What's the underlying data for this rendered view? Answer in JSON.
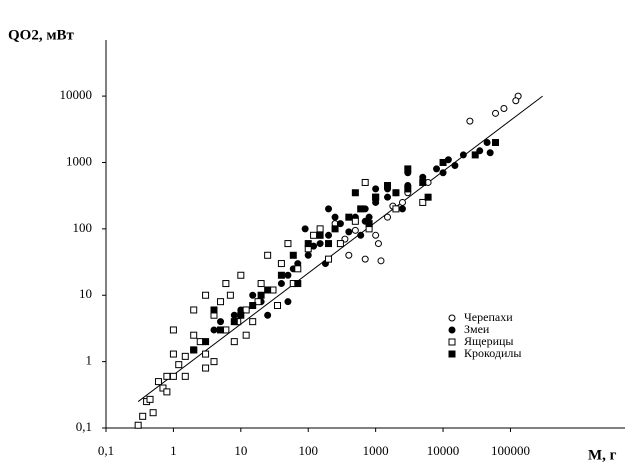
{
  "chart_data": {
    "type": "scatter",
    "y_label": "QO2, мВт",
    "x_label": "M, г",
    "xscale": "log",
    "yscale": "log",
    "xlim": [
      0.1,
      5000000
    ],
    "ylim": [
      0.1,
      70000
    ],
    "xticks": [
      {
        "value": 0.1,
        "label": "0,1"
      },
      1,
      10,
      100,
      1000,
      10000,
      100000
    ],
    "yticks": [
      {
        "value": 0.1,
        "label": "0,1"
      },
      1,
      10,
      100,
      1000,
      10000
    ],
    "legend": "right",
    "trend": {
      "x": [
        0.3,
        300000
      ],
      "values": [
        0.25,
        10000
      ],
      "color": "#000000"
    },
    "series": [
      {
        "name": "Черепахи",
        "marker": "circle-open",
        "color": "#000000",
        "x": [
          130000,
          120000,
          80000,
          60000,
          25000,
          1100,
          1200,
          700,
          500,
          350,
          250,
          1500,
          800,
          3000,
          6000,
          1800,
          2500,
          400,
          1000
        ],
        "values": [
          10000,
          8500,
          6500,
          5500,
          4200,
          60,
          33,
          35,
          95,
          70,
          120,
          150,
          110,
          350,
          500,
          220,
          250,
          40,
          80
        ]
      },
      {
        "name": "Змеи",
        "marker": "circle",
        "color": "#000000",
        "x": [
          45000,
          35000,
          20000,
          15000,
          10000,
          8000,
          5000,
          3000,
          2000,
          1500,
          1000,
          700,
          500,
          300,
          200,
          150,
          100,
          70,
          50,
          40,
          30,
          20,
          15,
          10,
          8,
          5,
          4,
          3,
          2,
          1500,
          2500,
          800,
          400,
          250,
          120,
          60,
          600,
          3000,
          12000,
          50000,
          1000,
          700,
          200,
          90,
          25,
          50,
          180
        ],
        "values": [
          2000,
          1500,
          1300,
          900,
          700,
          800,
          600,
          450,
          350,
          300,
          250,
          200,
          150,
          120,
          80,
          60,
          40,
          30,
          20,
          15,
          12,
          8,
          10,
          6,
          5,
          4,
          3,
          2,
          1.5,
          400,
          200,
          150,
          90,
          150,
          55,
          25,
          80,
          700,
          1100,
          1400,
          400,
          130,
          200,
          100,
          5,
          8,
          30
        ]
      },
      {
        "name": "Ящерицы",
        "marker": "square-open",
        "color": "#000000",
        "x": [
          0.3,
          0.35,
          0.4,
          0.45,
          0.5,
          0.7,
          0.8,
          1,
          1,
          1.2,
          1.5,
          2,
          2.5,
          3,
          3,
          4,
          5,
          6,
          7,
          8,
          10,
          12,
          15,
          20,
          25,
          30,
          40,
          50,
          70,
          100,
          150,
          200,
          300,
          500,
          800,
          1000,
          2000,
          5000,
          3,
          1.5,
          0.8,
          2,
          6,
          18,
          12,
          4,
          9,
          35,
          60,
          120,
          700,
          2,
          1,
          0.6
        ],
        "values": [
          0.11,
          0.15,
          0.25,
          0.27,
          0.17,
          0.4,
          0.6,
          0.6,
          3,
          0.9,
          1.2,
          1.5,
          2,
          10,
          1.3,
          5,
          8,
          3,
          10,
          2,
          20,
          6,
          4,
          15,
          40,
          12,
          30,
          60,
          25,
          50,
          100,
          35,
          60,
          130,
          100,
          300,
          200,
          250,
          0.8,
          0.6,
          0.35,
          2.5,
          15,
          8,
          2.5,
          1,
          4,
          7,
          15,
          80,
          500,
          6,
          1.3,
          0.5
        ]
      },
      {
        "name": "Крокодилы",
        "marker": "square",
        "color": "#000000",
        "x": [
          60000,
          30000,
          10000,
          5000,
          3000,
          2000,
          1500,
          1000,
          600,
          400,
          250,
          150,
          100,
          60,
          40,
          25,
          15,
          8,
          5,
          3,
          2,
          4,
          10,
          20,
          800,
          3000,
          6000,
          500,
          200,
          70
        ],
        "values": [
          2000,
          1300,
          1000,
          500,
          400,
          350,
          450,
          300,
          200,
          150,
          100,
          80,
          60,
          40,
          20,
          12,
          7,
          4,
          3,
          2,
          1.5,
          6,
          5,
          10,
          120,
          800,
          300,
          350,
          60,
          15
        ]
      }
    ]
  }
}
